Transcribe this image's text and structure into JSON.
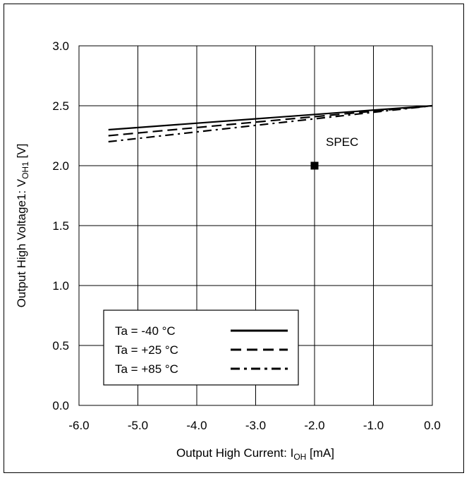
{
  "chart_data": {
    "type": "line",
    "xlabel": {
      "main": "Output High Current: I",
      "sub": "OH",
      "unit": " [mA]"
    },
    "ylabel": {
      "main": "Output High Voltage1: V",
      "sub": "OH1",
      "unit": " [V]"
    },
    "xlim": [
      -6.0,
      0.0
    ],
    "ylim": [
      0.0,
      3.0
    ],
    "xticks": [
      "-6.0",
      "-5.0",
      "-4.0",
      "-3.0",
      "-2.0",
      "-1.0",
      "0.0"
    ],
    "yticks": [
      "0.0",
      "0.5",
      "1.0",
      "1.5",
      "2.0",
      "2.5",
      "3.0"
    ],
    "grid": true,
    "legend_position": "bottom-left",
    "series": [
      {
        "name": "Ta = -40 °C",
        "style": "solid",
        "x": [
          -5.5,
          0.0
        ],
        "y": [
          2.3,
          2.5
        ]
      },
      {
        "name": "Ta = +25 °C",
        "style": "dashed",
        "x": [
          -5.5,
          0.0
        ],
        "y": [
          2.25,
          2.5
        ]
      },
      {
        "name": "Ta = +85 °C",
        "style": "dashdot",
        "x": [
          -5.5,
          0.0
        ],
        "y": [
          2.2,
          2.5
        ]
      }
    ],
    "annotations": [
      {
        "label": "SPEC",
        "x": -2.0,
        "y": 2.0,
        "marker": "square"
      }
    ],
    "colors": {
      "line": "#000000",
      "grid": "#000000",
      "background": "#ffffff"
    }
  }
}
